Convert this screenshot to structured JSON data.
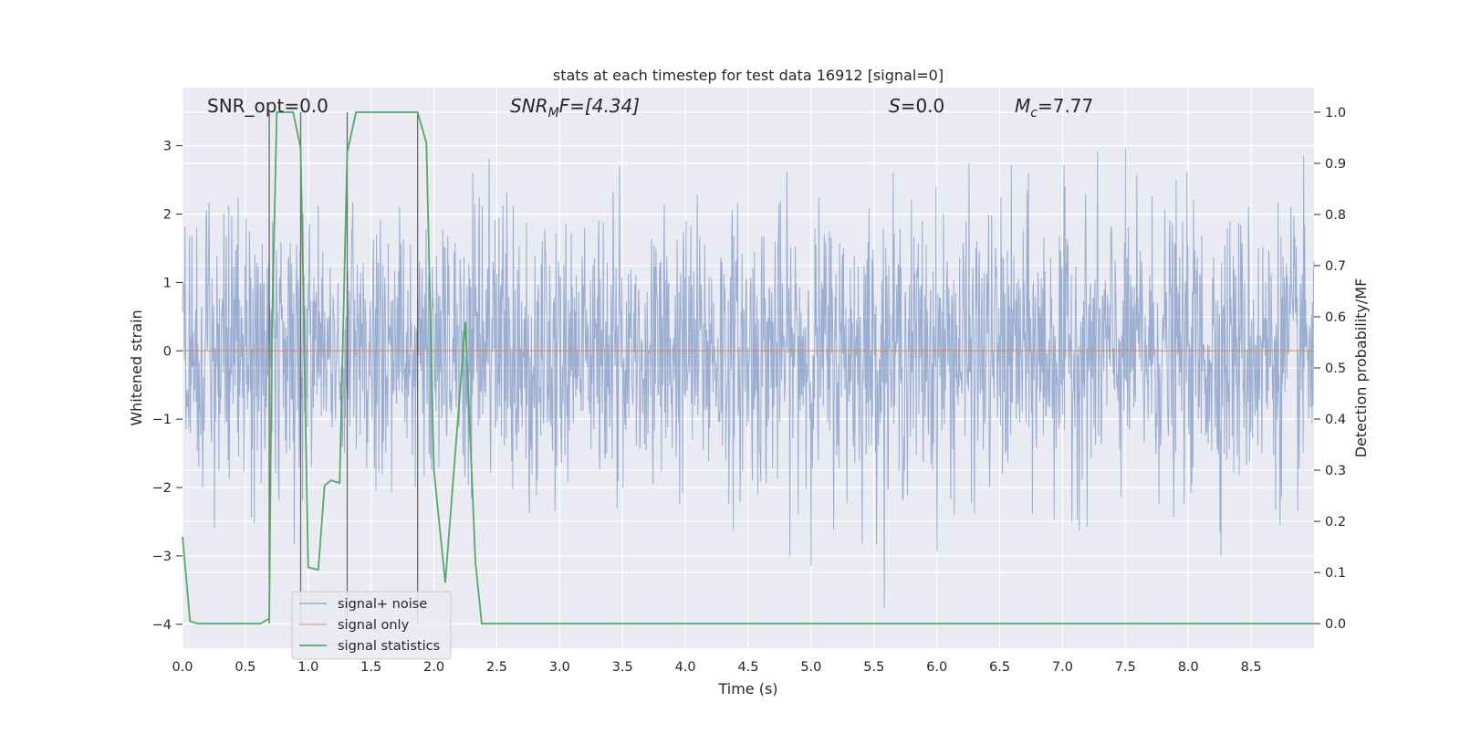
{
  "chart_data": {
    "type": "line",
    "title": "stats at each timestep for test data 16912 [signal=0]",
    "xlabel": "Time (s)",
    "ylabel_left": "Whitened strain",
    "ylabel_right": "Detection probability/MF",
    "xlim": [
      0.0,
      9.0
    ],
    "ylim_left": [
      -4.35,
      3.85
    ],
    "ylim_right": [
      -0.048,
      1.048
    ],
    "x_ticks": [
      "0.0",
      "0.5",
      "1.0",
      "1.5",
      "2.0",
      "2.5",
      "3.0",
      "3.5",
      "4.0",
      "4.5",
      "5.0",
      "5.5",
      "6.0",
      "6.5",
      "7.0",
      "7.5",
      "8.0",
      "8.5"
    ],
    "y_left_ticks": [
      "3",
      "2",
      "1",
      "0",
      "−1",
      "−2",
      "−3",
      "−4"
    ],
    "y_right_ticks": [
      "1.0",
      "0.9",
      "0.8",
      "0.7",
      "0.6",
      "0.5",
      "0.4",
      "0.3",
      "0.2",
      "0.1",
      "0.0"
    ],
    "grid": true,
    "legend_position": "lower-left",
    "annotations": {
      "snr_opt": "SNR_opt=0.0",
      "snr_mf_label": "SNR",
      "snr_mf_sub": "M",
      "snr_mf_value": "F=[4.34]",
      "s_label": "S",
      "s_value": "=0.0",
      "mc_label": "M",
      "mc_sub": "c",
      "mc_value": "=7.77"
    },
    "vertical_markers": [
      0.69,
      0.94,
      1.31,
      1.87
    ],
    "series": [
      {
        "name": "signal+ noise",
        "axis": "left",
        "color": "#4c72b0",
        "noise": {
          "n": 2300,
          "sigma": 1.0,
          "t_start": 0.0,
          "t_end": 9.0,
          "min": -4.0,
          "max": 3.4
        }
      },
      {
        "name": "signal only",
        "axis": "left",
        "color": "#dd8452",
        "x": [
          0.0,
          9.0
        ],
        "y": [
          0.0,
          0.0
        ]
      },
      {
        "name": "signal statistics",
        "axis": "right",
        "color": "#55a868",
        "x": [
          0.0,
          0.06,
          0.12,
          0.62,
          0.69,
          0.71,
          0.75,
          0.88,
          0.94,
          1.0,
          1.08,
          1.13,
          1.18,
          1.25,
          1.31,
          1.38,
          1.87,
          1.94,
          2.0,
          2.09,
          2.25,
          2.33,
          2.38,
          9.0
        ],
        "y": [
          0.17,
          0.005,
          0.0,
          0.0,
          0.01,
          0.55,
          1.0,
          1.0,
          0.93,
          0.11,
          0.105,
          0.27,
          0.28,
          0.275,
          0.92,
          1.0,
          1.0,
          0.94,
          0.3,
          0.08,
          0.59,
          0.12,
          0.0,
          0.0
        ]
      }
    ]
  }
}
